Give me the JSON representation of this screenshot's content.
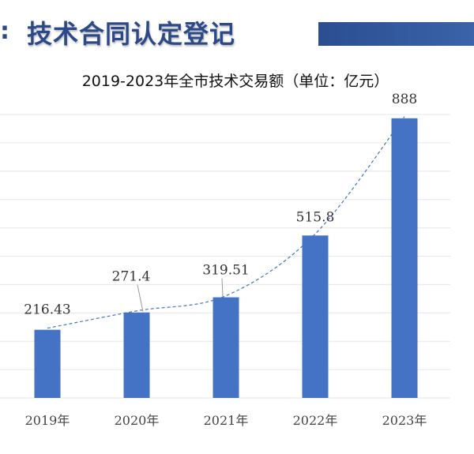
{
  "header": {
    "colon": ":",
    "title": "技术合同认定登记",
    "bar_color": "#2b4e91"
  },
  "chart_data": {
    "type": "bar",
    "title": "2019-2023年全市技术交易额（单位：亿元）",
    "categories": [
      "2019年",
      "2020年",
      "2021年",
      "2022年",
      "2023年"
    ],
    "values": [
      216.43,
      271.4,
      319.51,
      515.8,
      888
    ],
    "value_labels": [
      "216.43",
      "271.4",
      "319.51",
      "515.8",
      "888"
    ],
    "ylim": [
      0,
      900
    ],
    "grid": true,
    "trendline": "dashed",
    "colors": {
      "bar": "#4472c4",
      "trendline": "#4472c4",
      "grid": "#e6e6e6"
    }
  }
}
